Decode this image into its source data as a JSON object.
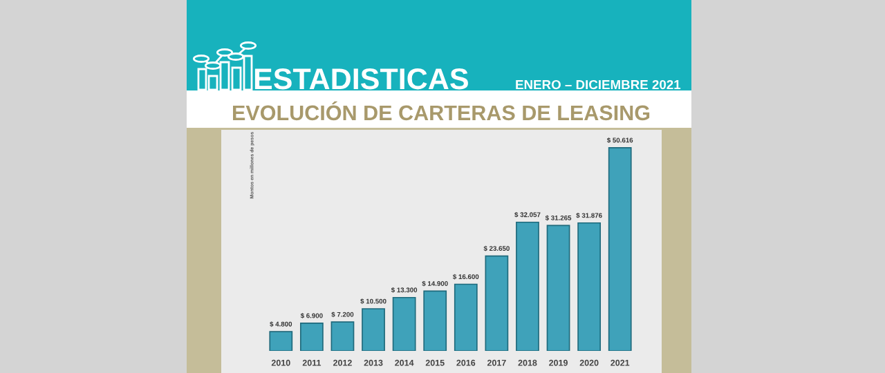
{
  "chart_data": {
    "type": "bar",
    "title": "EVOLUCIÓN DE CARTERAS DE LEASING",
    "subtitle": "ENERO – DICIEMBRE 2021",
    "annotations": [
      "ESTADISTICAS"
    ],
    "ylabel": "Montos en millones de pesos",
    "categories": [
      "2010",
      "2011",
      "2012",
      "2013",
      "2014",
      "2015",
      "2016",
      "2017",
      "2018",
      "2019",
      "2020",
      "2021"
    ],
    "values": [
      4800,
      6900,
      7200,
      10500,
      13300,
      14900,
      16600,
      23650,
      32057,
      31265,
      31876,
      50616
    ],
    "value_labels": [
      "$ 4.800",
      "$ 6.900",
      "$ 7.200",
      "$ 10.500",
      "$ 13.300",
      "$ 14.900",
      "$ 16.600",
      "$ 23.650",
      "$ 32.057",
      "$ 31.265",
      "$ 31.876",
      "$ 50.616"
    ],
    "color": "#3fa2ba",
    "tick_labels": "x"
  }
}
